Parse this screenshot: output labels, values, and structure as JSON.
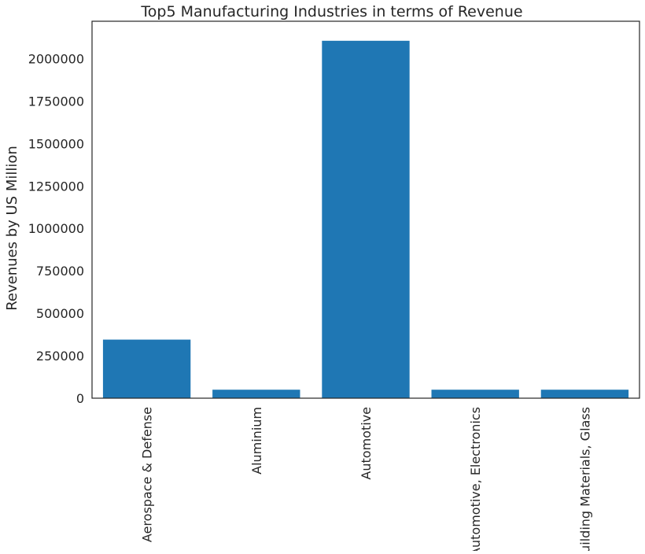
{
  "chart_data": {
    "type": "bar",
    "title": "Top5 Manufacturing Industries in terms of Revenue",
    "xlabel": "",
    "ylabel": "Revenues by US Million",
    "categories": [
      "Aerospace & Defense",
      "Aluminium",
      "Automotive",
      "Automotive, Electronics",
      "Building Materials, Glass"
    ],
    "values": [
      345000,
      50000,
      2105000,
      50000,
      50000
    ],
    "ylim": [
      0,
      2220000
    ],
    "yticks": [
      0,
      250000,
      500000,
      750000,
      1000000,
      1250000,
      1500000,
      1750000,
      2000000
    ],
    "ytick_labels": [
      "0",
      "250000",
      "500000",
      "750000",
      "1000000",
      "1250000",
      "1500000",
      "1750000",
      "2000000"
    ],
    "grid": false,
    "bar_color": "#1f77b4",
    "x_tick_rotation": "vertical"
  }
}
